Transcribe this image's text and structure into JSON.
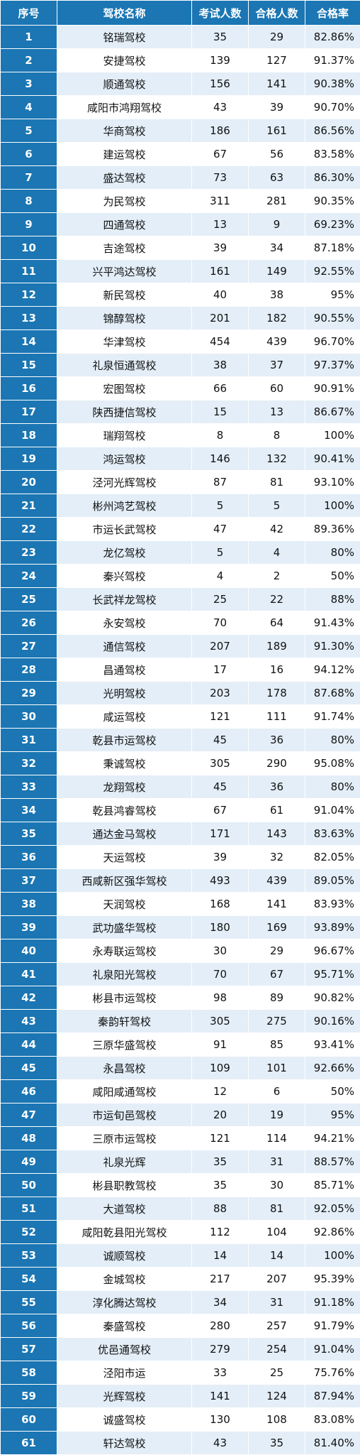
{
  "table": {
    "headers": [
      "序号",
      "驾校名称",
      "考试人数",
      "合格人数",
      "合格率"
    ],
    "rows": [
      {
        "no": "1",
        "name": "铭瑞驾校",
        "tested": "35",
        "passed": "29",
        "rate": "82.86%"
      },
      {
        "no": "2",
        "name": "安捷驾校",
        "tested": "139",
        "passed": "127",
        "rate": "91.37%"
      },
      {
        "no": "3",
        "name": "顺通驾校",
        "tested": "156",
        "passed": "141",
        "rate": "90.38%"
      },
      {
        "no": "4",
        "name": "咸阳市鸿翔驾校",
        "tested": "43",
        "passed": "39",
        "rate": "90.70%"
      },
      {
        "no": "5",
        "name": "华商驾校",
        "tested": "186",
        "passed": "161",
        "rate": "86.56%"
      },
      {
        "no": "6",
        "name": "建运驾校",
        "tested": "67",
        "passed": "56",
        "rate": "83.58%"
      },
      {
        "no": "7",
        "name": "盛达驾校",
        "tested": "73",
        "passed": "63",
        "rate": "86.30%"
      },
      {
        "no": "8",
        "name": "为民驾校",
        "tested": "311",
        "passed": "281",
        "rate": "90.35%"
      },
      {
        "no": "9",
        "name": "四通驾校",
        "tested": "13",
        "passed": "9",
        "rate": "69.23%"
      },
      {
        "no": "10",
        "name": "吉途驾校",
        "tested": "39",
        "passed": "34",
        "rate": "87.18%"
      },
      {
        "no": "11",
        "name": "兴平鸿达驾校",
        "tested": "161",
        "passed": "149",
        "rate": "92.55%"
      },
      {
        "no": "12",
        "name": "新民驾校",
        "tested": "40",
        "passed": "38",
        "rate": "95%"
      },
      {
        "no": "13",
        "name": "锦醇驾校",
        "tested": "201",
        "passed": "182",
        "rate": "90.55%"
      },
      {
        "no": "14",
        "name": "华津驾校",
        "tested": "454",
        "passed": "439",
        "rate": "96.70%"
      },
      {
        "no": "15",
        "name": "礼泉恒通驾校",
        "tested": "38",
        "passed": "37",
        "rate": "97.37%"
      },
      {
        "no": "16",
        "name": "宏图驾校",
        "tested": "66",
        "passed": "60",
        "rate": "90.91%"
      },
      {
        "no": "17",
        "name": "陕西捷信驾校",
        "tested": "15",
        "passed": "13",
        "rate": "86.67%"
      },
      {
        "no": "18",
        "name": "瑞翔驾校",
        "tested": "8",
        "passed": "8",
        "rate": "100%"
      },
      {
        "no": "19",
        "name": "鸿运驾校",
        "tested": "146",
        "passed": "132",
        "rate": "90.41%"
      },
      {
        "no": "20",
        "name": "泾河光辉驾校",
        "tested": "87",
        "passed": "81",
        "rate": "93.10%"
      },
      {
        "no": "21",
        "name": "彬州鸿艺驾校",
        "tested": "5",
        "passed": "5",
        "rate": "100%"
      },
      {
        "no": "22",
        "name": "市运长武驾校",
        "tested": "47",
        "passed": "42",
        "rate": "89.36%"
      },
      {
        "no": "23",
        "name": "龙亿驾校",
        "tested": "5",
        "passed": "4",
        "rate": "80%"
      },
      {
        "no": "24",
        "name": "秦兴驾校",
        "tested": "4",
        "passed": "2",
        "rate": "50%"
      },
      {
        "no": "25",
        "name": "长武祥龙驾校",
        "tested": "25",
        "passed": "22",
        "rate": "88%"
      },
      {
        "no": "26",
        "name": "永安驾校",
        "tested": "70",
        "passed": "64",
        "rate": "91.43%"
      },
      {
        "no": "27",
        "name": "通信驾校",
        "tested": "207",
        "passed": "189",
        "rate": "91.30%"
      },
      {
        "no": "28",
        "name": "昌通驾校",
        "tested": "17",
        "passed": "16",
        "rate": "94.12%"
      },
      {
        "no": "29",
        "name": "光明驾校",
        "tested": "203",
        "passed": "178",
        "rate": "87.68%"
      },
      {
        "no": "30",
        "name": "咸运驾校",
        "tested": "121",
        "passed": "111",
        "rate": "91.74%"
      },
      {
        "no": "31",
        "name": "乾县市运驾校",
        "tested": "45",
        "passed": "36",
        "rate": "80%"
      },
      {
        "no": "32",
        "name": "秉诚驾校",
        "tested": "305",
        "passed": "290",
        "rate": "95.08%"
      },
      {
        "no": "33",
        "name": "龙翔驾校",
        "tested": "45",
        "passed": "36",
        "rate": "80%"
      },
      {
        "no": "34",
        "name": "乾县鸿睿驾校",
        "tested": "67",
        "passed": "61",
        "rate": "91.04%"
      },
      {
        "no": "35",
        "name": "通达金马驾校",
        "tested": "171",
        "passed": "143",
        "rate": "83.63%"
      },
      {
        "no": "36",
        "name": "天运驾校",
        "tested": "39",
        "passed": "32",
        "rate": "82.05%"
      },
      {
        "no": "37",
        "name": "西咸新区强华驾校",
        "tested": "493",
        "passed": "439",
        "rate": "89.05%"
      },
      {
        "no": "38",
        "name": "天润驾校",
        "tested": "168",
        "passed": "141",
        "rate": "83.93%"
      },
      {
        "no": "39",
        "name": "武功盛华驾校",
        "tested": "180",
        "passed": "169",
        "rate": "93.89%"
      },
      {
        "no": "40",
        "name": "永寿联运驾校",
        "tested": "30",
        "passed": "29",
        "rate": "96.67%"
      },
      {
        "no": "41",
        "name": "礼泉阳光驾校",
        "tested": "70",
        "passed": "67",
        "rate": "95.71%"
      },
      {
        "no": "42",
        "name": "彬县市运驾校",
        "tested": "98",
        "passed": "89",
        "rate": "90.82%"
      },
      {
        "no": "43",
        "name": "秦韵轩驾校",
        "tested": "305",
        "passed": "275",
        "rate": "90.16%"
      },
      {
        "no": "44",
        "name": "三原华盛驾校",
        "tested": "91",
        "passed": "85",
        "rate": "93.41%"
      },
      {
        "no": "45",
        "name": "永昌驾校",
        "tested": "109",
        "passed": "101",
        "rate": "92.66%"
      },
      {
        "no": "46",
        "name": "咸阳咸通驾校",
        "tested": "12",
        "passed": "6",
        "rate": "50%"
      },
      {
        "no": "47",
        "name": "市运旬邑驾校",
        "tested": "20",
        "passed": "19",
        "rate": "95%"
      },
      {
        "no": "48",
        "name": "三原市运驾校",
        "tested": "121",
        "passed": "114",
        "rate": "94.21%"
      },
      {
        "no": "49",
        "name": "礼泉光辉",
        "tested": "35",
        "passed": "31",
        "rate": "88.57%"
      },
      {
        "no": "50",
        "name": "彬县职教驾校",
        "tested": "35",
        "passed": "30",
        "rate": "85.71%"
      },
      {
        "no": "51",
        "name": "大道驾校",
        "tested": "88",
        "passed": "81",
        "rate": "92.05%"
      },
      {
        "no": "52",
        "name": "咸阳乾县阳光驾校",
        "tested": "112",
        "passed": "104",
        "rate": "92.86%"
      },
      {
        "no": "53",
        "name": "诚顺驾校",
        "tested": "14",
        "passed": "14",
        "rate": "100%"
      },
      {
        "no": "54",
        "name": "金城驾校",
        "tested": "217",
        "passed": "207",
        "rate": "95.39%"
      },
      {
        "no": "55",
        "name": "淳化腾达驾校",
        "tested": "34",
        "passed": "31",
        "rate": "91.18%"
      },
      {
        "no": "56",
        "name": "秦盛驾校",
        "tested": "280",
        "passed": "257",
        "rate": "91.79%"
      },
      {
        "no": "57",
        "name": "优邑通驾校",
        "tested": "279",
        "passed": "254",
        "rate": "91.04%"
      },
      {
        "no": "58",
        "name": "泾阳市运",
        "tested": "33",
        "passed": "25",
        "rate": "75.76%"
      },
      {
        "no": "59",
        "name": "光辉驾校",
        "tested": "141",
        "passed": "124",
        "rate": "87.94%"
      },
      {
        "no": "60",
        "name": "诚盛驾校",
        "tested": "130",
        "passed": "108",
        "rate": "83.08%"
      },
      {
        "no": "61",
        "name": "轩达驾校",
        "tested": "43",
        "passed": "35",
        "rate": "81.40%"
      }
    ]
  }
}
